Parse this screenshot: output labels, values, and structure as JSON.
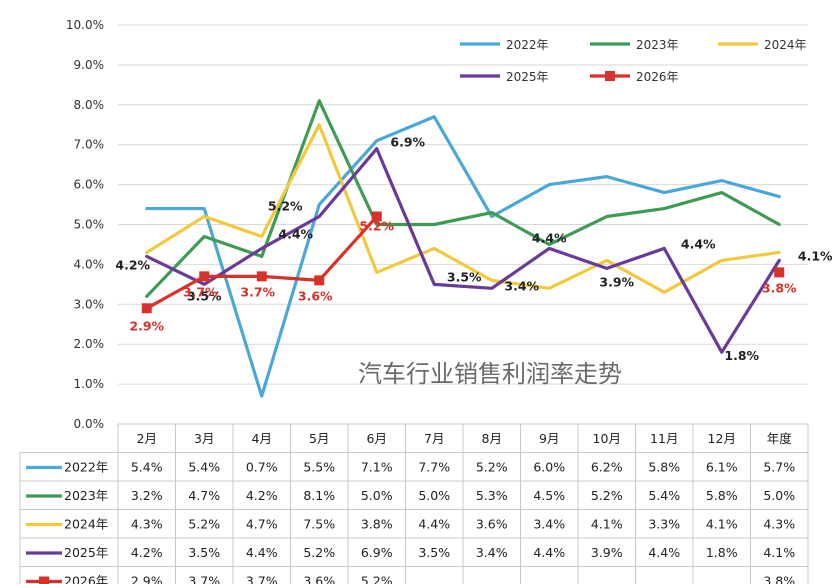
{
  "chart_data": {
    "type": "line",
    "title": "汽车行业销售利润率走势",
    "categories": [
      "2月",
      "3月",
      "4月",
      "5月",
      "6月",
      "7月",
      "8月",
      "9月",
      "10月",
      "11月",
      "12月",
      "年度"
    ],
    "y_ticks": [
      "0.0%",
      "1.0%",
      "2.0%",
      "3.0%",
      "4.0%",
      "5.0%",
      "6.0%",
      "7.0%",
      "8.0%",
      "9.0%",
      "10.0%"
    ],
    "ylim": [
      0,
      10
    ],
    "grid": "horizontal",
    "legend_position": "top-right",
    "series": [
      {
        "name": "2022年",
        "color": "#4aa8d8",
        "marker": "none",
        "values": [
          5.4,
          5.4,
          0.7,
          5.5,
          7.1,
          7.7,
          5.2,
          6.0,
          6.2,
          5.8,
          6.1,
          5.7
        ],
        "display": [
          "5.4%",
          "5.4%",
          "0.7%",
          "5.5%",
          "7.1%",
          "7.7%",
          "5.2%",
          "6.0%",
          "6.2%",
          "5.8%",
          "6.1%",
          "5.7%"
        ]
      },
      {
        "name": "2023年",
        "color": "#3e9b54",
        "marker": "none",
        "values": [
          3.2,
          4.7,
          4.2,
          8.1,
          5.0,
          5.0,
          5.3,
          4.5,
          5.2,
          5.4,
          5.8,
          5.0
        ],
        "display": [
          "3.2%",
          "4.7%",
          "4.2%",
          "8.1%",
          "5.0%",
          "5.0%",
          "5.3%",
          "4.5%",
          "5.2%",
          "5.4%",
          "5.8%",
          "5.0%"
        ]
      },
      {
        "name": "2024年",
        "color": "#f2c83c",
        "marker": "none",
        "values": [
          4.3,
          5.2,
          4.7,
          7.5,
          3.8,
          4.4,
          3.6,
          3.4,
          4.1,
          3.3,
          4.1,
          4.3
        ],
        "display": [
          "4.3%",
          "5.2%",
          "4.7%",
          "7.5%",
          "3.8%",
          "4.4%",
          "3.6%",
          "3.4%",
          "4.1%",
          "3.3%",
          "4.1%",
          "4.3%"
        ]
      },
      {
        "name": "2025年",
        "color": "#6a3a96",
        "marker": "none",
        "values": [
          4.2,
          3.5,
          4.4,
          5.2,
          6.9,
          3.5,
          3.4,
          4.4,
          3.9,
          4.4,
          1.8,
          4.1
        ],
        "display": [
          "4.2%",
          "3.5%",
          "4.4%",
          "5.2%",
          "6.9%",
          "3.5%",
          "3.4%",
          "4.4%",
          "3.9%",
          "4.4%",
          "1.8%",
          "4.1%"
        ]
      },
      {
        "name": "2026年",
        "color": "#d7322a",
        "marker": "square",
        "values": [
          2.9,
          3.7,
          3.7,
          3.6,
          5.2,
          null,
          null,
          null,
          null,
          null,
          null,
          3.8
        ],
        "display": [
          "2.9%",
          "3.7%",
          "3.7%",
          "3.6%",
          "5.2%",
          "",
          "",
          "",
          "",
          "",
          "",
          "3.8%"
        ]
      }
    ],
    "annotations": [
      {
        "text": "4.2%",
        "series": "2025年",
        "category": "2月",
        "color": "#222222"
      },
      {
        "text": "3.5%",
        "series": "2025年",
        "category": "3月",
        "color": "#222222"
      },
      {
        "text": "4.4%",
        "series": "2025年",
        "category": "4月",
        "color": "#222222"
      },
      {
        "text": "5.2%",
        "series": "2025年",
        "category": "5月",
        "color": "#222222"
      },
      {
        "text": "6.9%",
        "series": "2025年",
        "category": "6月",
        "color": "#222222"
      },
      {
        "text": "3.5%",
        "series": "2025年",
        "category": "7月",
        "color": "#222222"
      },
      {
        "text": "3.4%",
        "series": "2025年",
        "category": "8月",
        "color": "#222222"
      },
      {
        "text": "4.4%",
        "series": "2025年",
        "category": "9月",
        "color": "#222222"
      },
      {
        "text": "3.9%",
        "series": "2025年",
        "category": "10月",
        "color": "#222222"
      },
      {
        "text": "4.4%",
        "series": "2025年",
        "category": "11月",
        "color": "#222222"
      },
      {
        "text": "1.8%",
        "series": "2025年",
        "category": "12月",
        "color": "#222222"
      },
      {
        "text": "4.1%",
        "series": "2025年",
        "category": "年度",
        "color": "#222222"
      },
      {
        "text": "2.9%",
        "series": "2026年",
        "category": "2月",
        "color": "#d7322a"
      },
      {
        "text": "3.7%",
        "series": "2026年",
        "category": "3月",
        "color": "#d7322a"
      },
      {
        "text": "3.7%",
        "series": "2026年",
        "category": "4月",
        "color": "#d7322a"
      },
      {
        "text": "3.6%",
        "series": "2026年",
        "category": "5月",
        "color": "#d7322a"
      },
      {
        "text": "5.2%",
        "series": "2026年",
        "category": "6月",
        "color": "#d7322a"
      },
      {
        "text": "3.8%",
        "series": "2026年",
        "category": "年度",
        "color": "#d7322a"
      }
    ]
  }
}
